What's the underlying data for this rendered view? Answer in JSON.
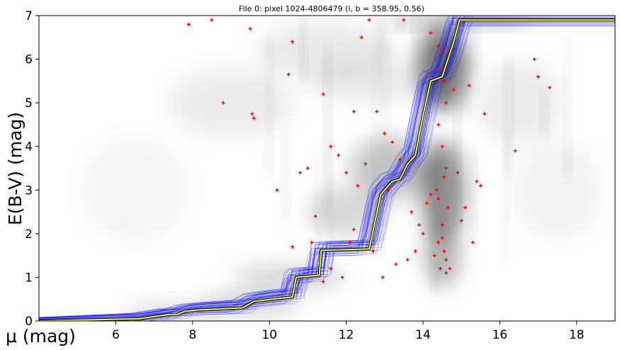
{
  "chart_data": {
    "type": "scatter",
    "title": "File 0: pixel 1024-4806479 (l, b = 358.95, 0.56)",
    "xlabel": "μ (mag)",
    "ylabel": "E(B-V) (mag)",
    "xlim": [
      4,
      19
    ],
    "ylim": [
      0,
      7
    ],
    "xticks": [
      6,
      8,
      10,
      12,
      14,
      16,
      18
    ],
    "yticks": [
      0,
      1,
      2,
      3,
      4,
      5,
      6,
      7
    ],
    "grid": false,
    "legend": "none",
    "background": "grayscale density map of E(B-V) vs distance modulus",
    "colors": {
      "samples": "#0000ff",
      "best_fit": "#ffff00",
      "best_fit_outline": "#000000",
      "stars": "#ff0000"
    },
    "series": [
      {
        "role": "best-fit",
        "x": [
          4.0,
          6.6,
          7.4,
          7.6,
          7.8,
          8.1,
          9.3,
          9.6,
          10.6,
          10.7,
          11.3,
          11.35,
          12.6,
          12.9,
          13.2,
          13.4,
          13.6,
          13.8,
          14.0,
          14.2,
          14.5,
          14.65,
          14.8,
          14.95,
          19.0
        ],
        "y": [
          0.0,
          0.05,
          0.15,
          0.15,
          0.22,
          0.25,
          0.3,
          0.45,
          0.55,
          1.0,
          1.05,
          1.62,
          1.65,
          2.9,
          3.2,
          3.25,
          3.6,
          3.8,
          4.7,
          5.5,
          5.6,
          6.0,
          6.4,
          6.9,
          6.9
        ]
      }
    ],
    "stars": {
      "x": [
        7.9,
        8.5,
        8.8,
        9.5,
        9.55,
        9.6,
        10.5,
        10.6,
        11.4,
        11.6,
        12.2,
        12.4,
        12.6,
        12.8,
        13.5,
        14.2,
        14.5,
        14.8,
        15.2,
        15.6,
        16.9,
        17.0,
        17.3,
        16.4,
        10.2,
        10.8,
        11.0,
        11.2,
        11.8,
        12.0,
        12.3,
        12.5,
        12.9,
        13.1,
        13.4,
        13.7,
        13.9,
        14.3,
        14.6,
        14.7,
        15.0,
        15.4,
        13.0,
        13.2,
        14.4,
        14.45,
        14.5,
        14.55,
        14.6,
        14.4,
        14.5,
        14.6,
        14.35,
        14.65,
        14.5,
        14.4,
        14.55,
        14.45,
        14.6,
        14.5,
        14.4,
        14.55,
        12.1,
        12.2,
        11.6,
        11.9,
        10.6,
        11.1,
        11.4,
        13.6,
        13.8,
        14.0,
        14.1,
        14.2,
        12.7,
        12.95,
        13.3,
        14.9,
        15.1,
        15.3,
        15.5
      ],
      "y": [
        6.8,
        6.9,
        5.0,
        6.7,
        4.75,
        4.65,
        5.65,
        6.4,
        5.2,
        4.0,
        4.8,
        6.5,
        6.9,
        4.8,
        6.9,
        6.6,
        6.2,
        5.3,
        5.4,
        4.75,
        6.0,
        5.6,
        5.35,
        3.9,
        3.0,
        3.4,
        3.5,
        2.4,
        3.8,
        3.4,
        3.1,
        3.6,
        2.8,
        3.0,
        3.7,
        2.5,
        2.2,
        1.5,
        1.4,
        1.2,
        2.3,
        3.2,
        4.3,
        4.1,
        6.3,
        6.1,
        5.8,
        5.5,
        5.0,
        4.5,
        4.0,
        3.5,
        3.0,
        2.6,
        2.2,
        1.8,
        1.6,
        1.2,
        1.1,
        1.9,
        2.8,
        3.3,
        1.8,
        2.1,
        1.2,
        1.0,
        1.7,
        1.8,
        0.9,
        1.4,
        1.6,
        2.0,
        2.7,
        2.9,
        1.6,
        1.0,
        1.3,
        3.4,
        2.6,
        1.8,
        3.1
      ]
    }
  }
}
